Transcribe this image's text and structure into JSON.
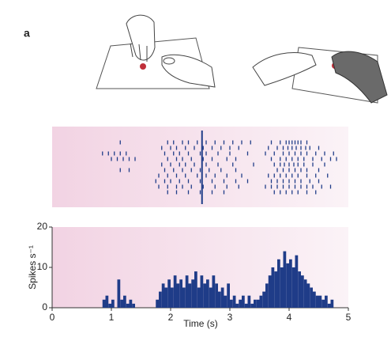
{
  "panel_label": "a",
  "chart_data": [
    {
      "type": "raster",
      "color": "#1f3c88",
      "xlim": [
        0,
        5
      ],
      "event_time": 2.53,
      "trials": [
        [
          1.15,
          1.95,
          2.05,
          2.2,
          2.3,
          2.45,
          2.6,
          2.75,
          2.9,
          3.05,
          3.2,
          3.35,
          3.7,
          3.85,
          3.95,
          4.0,
          4.05,
          4.1,
          4.15,
          4.2,
          4.3
        ],
        [
          1.85,
          2.0,
          2.1,
          2.25,
          2.4,
          2.55,
          2.7,
          2.85,
          3.0,
          3.15,
          3.65,
          3.8,
          3.9,
          3.98,
          4.05,
          4.12,
          4.2,
          4.28,
          4.35,
          4.5
        ],
        [
          0.85,
          0.95,
          1.05,
          1.15,
          1.25,
          1.9,
          2.05,
          2.15,
          2.3,
          2.5,
          2.6,
          2.8,
          3.0,
          3.3,
          3.6,
          3.75,
          3.9,
          4.0,
          4.1,
          4.2,
          4.3,
          4.45,
          4.6,
          4.75
        ],
        [
          1.0,
          1.1,
          1.2,
          1.3,
          1.4,
          1.95,
          2.1,
          2.2,
          2.35,
          2.55,
          2.7,
          2.95,
          3.1,
          3.7,
          3.85,
          3.95,
          4.05,
          4.15,
          4.25,
          4.4,
          4.55,
          4.7,
          4.8
        ],
        [
          1.85,
          2.0,
          2.15,
          2.25,
          2.4,
          2.6,
          2.8,
          3.05,
          3.4,
          3.75,
          3.85,
          3.92,
          4.0,
          4.08,
          4.15,
          4.25,
          4.4,
          4.6
        ],
        [
          1.15,
          1.3,
          1.9,
          2.05,
          2.2,
          2.35,
          2.5,
          2.65,
          2.85,
          3.1,
          3.8,
          3.9,
          4.0,
          4.1,
          4.2,
          4.3,
          4.5
        ],
        [
          1.8,
          1.95,
          2.1,
          2.25,
          2.45,
          2.6,
          2.75,
          2.95,
          3.2,
          3.65,
          3.75,
          3.85,
          3.95,
          4.05,
          4.15,
          4.3,
          4.45,
          4.65
        ],
        [
          1.75,
          1.9,
          2.0,
          2.15,
          2.3,
          2.5,
          2.7,
          2.9,
          3.1,
          3.3,
          3.7,
          3.8,
          3.9,
          4.0,
          4.1,
          4.2,
          4.35,
          4.5
        ],
        [
          1.8,
          1.95,
          2.1,
          2.2,
          2.35,
          2.55,
          2.75,
          2.95,
          3.15,
          3.6,
          3.7,
          3.8,
          3.9,
          4.0,
          4.1,
          4.2,
          4.3,
          4.4,
          4.55,
          4.7
        ],
        [
          1.95,
          2.1,
          2.3,
          2.5,
          2.7,
          2.9,
          3.75,
          3.85,
          3.95,
          4.05,
          4.15,
          4.3,
          4.45
        ]
      ]
    },
    {
      "type": "histogram",
      "color": "#1f3c88",
      "xlabel": "Time (s)",
      "ylabel": "Spikes s⁻¹",
      "xlim": [
        0,
        5
      ],
      "xticks": [
        0,
        1,
        2,
        3,
        4,
        5
      ],
      "ylim": [
        0,
        20
      ],
      "yticks": [
        0,
        10,
        20
      ],
      "bins": [
        0.8,
        0.85,
        0.9,
        0.95,
        1.0,
        1.05,
        1.1,
        1.15,
        1.2,
        1.25,
        1.3,
        1.35,
        1.4,
        1.45,
        1.5,
        1.55,
        1.6,
        1.65,
        1.7,
        1.75,
        1.8,
        1.85,
        1.9,
        1.95,
        2.0,
        2.05,
        2.1,
        2.15,
        2.2,
        2.25,
        2.3,
        2.35,
        2.4,
        2.45,
        2.5,
        2.55,
        2.6,
        2.65,
        2.7,
        2.75,
        2.8,
        2.85,
        2.9,
        2.95,
        3.0,
        3.05,
        3.1,
        3.15,
        3.2,
        3.25,
        3.3,
        3.35,
        3.4,
        3.45,
        3.5,
        3.55,
        3.6,
        3.65,
        3.7,
        3.75,
        3.8,
        3.85,
        3.9,
        3.95,
        4.0,
        4.05,
        4.1,
        4.15,
        4.2,
        4.25,
        4.3,
        4.35,
        4.4,
        4.45,
        4.5,
        4.55,
        4.6,
        4.65,
        4.7,
        4.75,
        4.8
      ],
      "values": [
        0,
        2,
        3,
        1,
        2,
        0,
        7,
        2,
        3,
        1,
        2,
        1,
        0,
        0,
        0,
        0,
        0,
        0,
        0,
        2,
        4,
        6,
        5,
        7,
        5,
        8,
        6,
        7,
        5,
        8,
        6,
        7,
        9,
        5,
        8,
        6,
        7,
        5,
        8,
        6,
        4,
        5,
        3,
        6,
        2,
        3,
        1,
        2,
        3,
        1,
        3,
        1,
        2,
        2,
        3,
        4,
        6,
        8,
        10,
        9,
        12,
        10,
        14,
        11,
        12,
        10,
        13,
        9,
        8,
        7,
        6,
        5,
        4,
        3,
        3,
        2,
        3,
        1,
        2,
        0
      ]
    }
  ]
}
